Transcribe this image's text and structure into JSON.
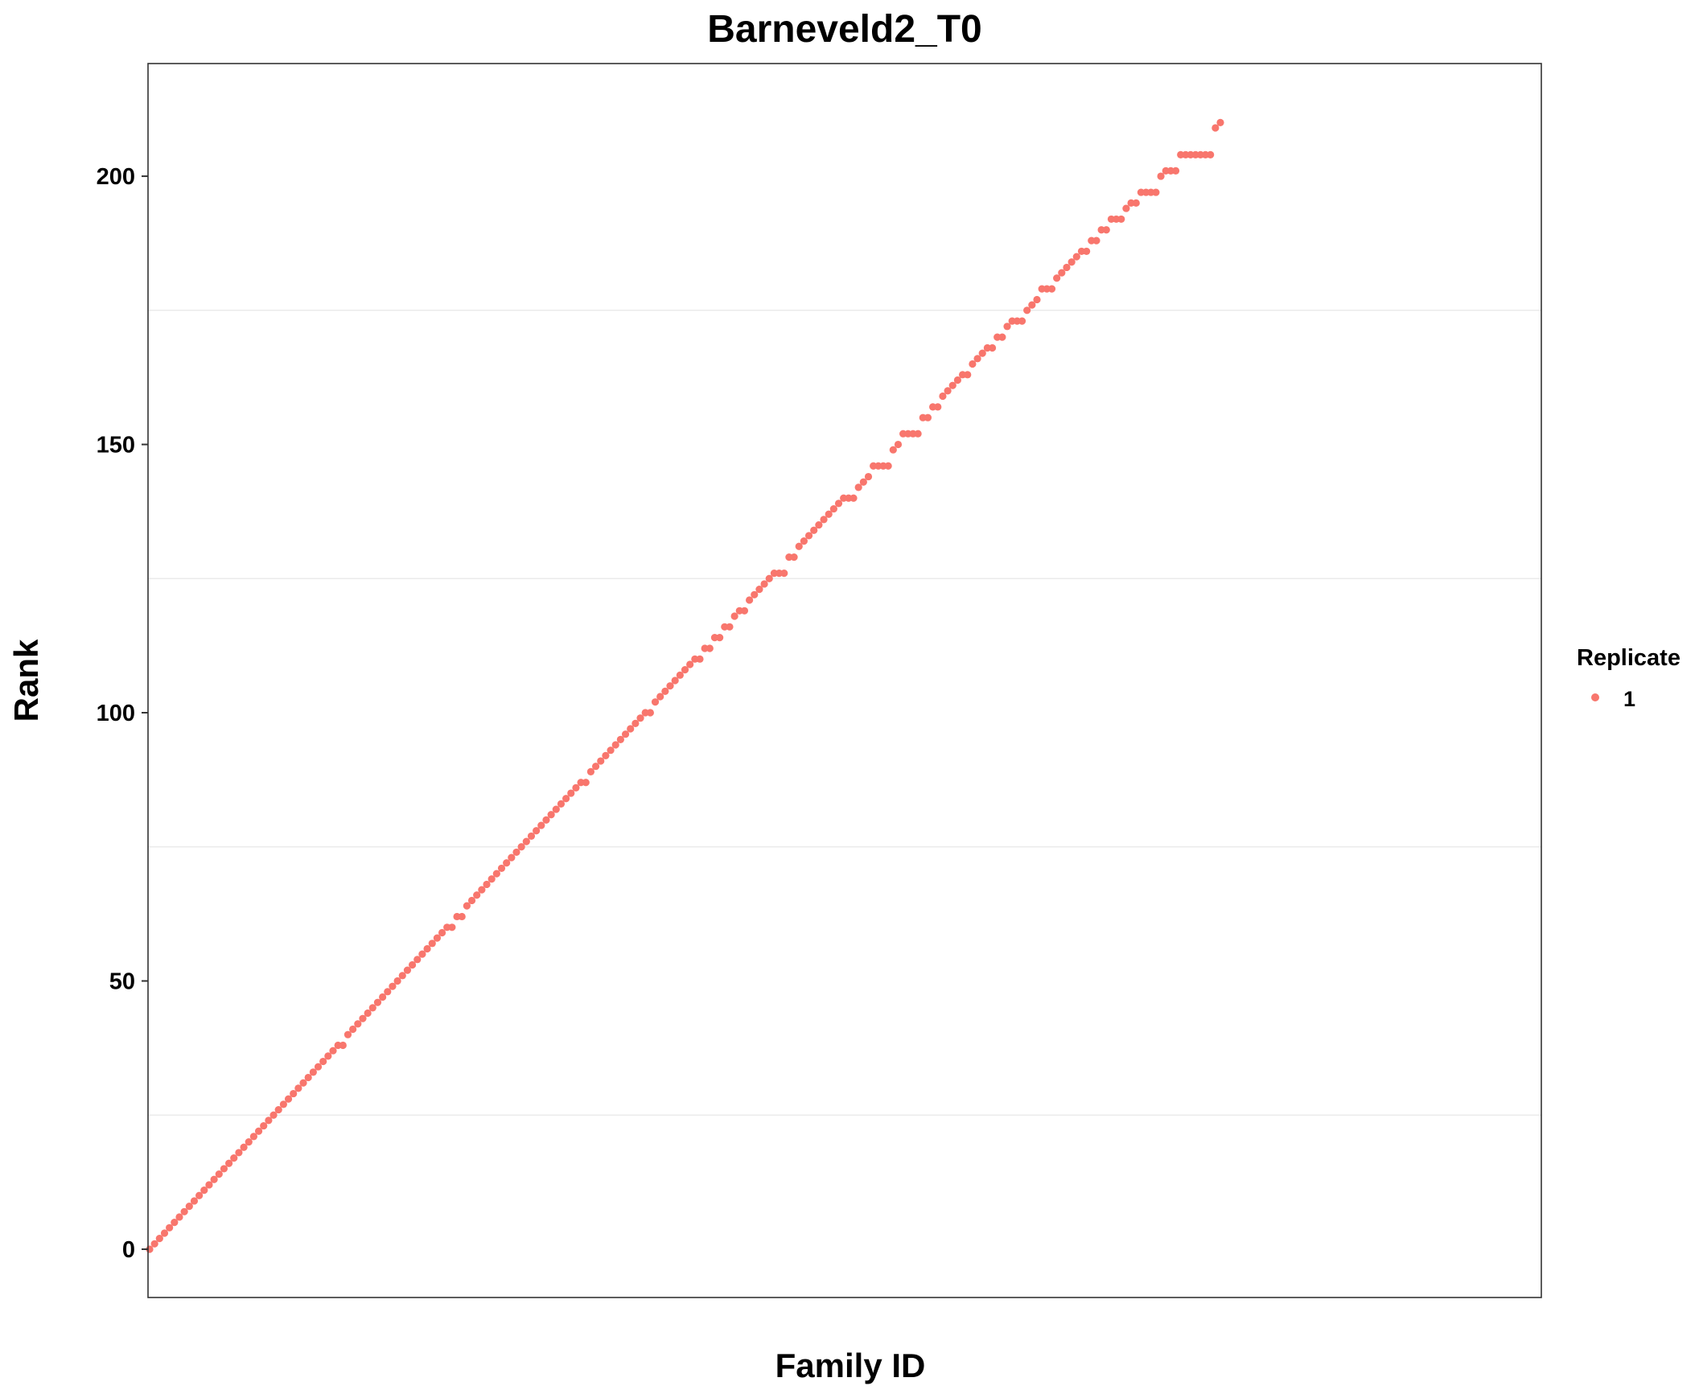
{
  "chart_data": {
    "type": "scatter",
    "title": "Barneveld2_T0",
    "xlabel": "Family ID",
    "ylabel": "Rank",
    "y_ticks": [
      0,
      50,
      100,
      150,
      200
    ],
    "y_tick_labels": [
      "0",
      "50",
      "100",
      "150",
      "200"
    ],
    "ylim": [
      -9,
      221
    ],
    "x_tick_labels": [],
    "grid": "horizontal minor gridlines only",
    "legend": {
      "title": "Replicate",
      "entries": [
        "1"
      ],
      "placement": "right"
    },
    "series": [
      {
        "name": "1",
        "color": "#F8766D",
        "values": [
          0,
          1,
          2,
          3,
          4,
          5,
          6,
          7,
          8,
          9,
          10,
          11,
          12,
          13,
          14,
          15,
          16,
          17,
          18,
          19,
          20,
          21,
          22,
          23,
          24,
          25,
          26,
          27,
          28,
          29,
          30,
          31,
          32,
          33,
          34,
          35,
          36,
          37,
          38,
          38,
          40,
          41,
          42,
          43,
          44,
          45,
          46,
          47,
          48,
          49,
          50,
          51,
          52,
          53,
          54,
          55,
          56,
          57,
          58,
          59,
          60,
          60,
          62,
          62,
          64,
          65,
          66,
          67,
          68,
          69,
          70,
          71,
          72,
          73,
          74,
          75,
          76,
          77,
          78,
          79,
          80,
          81,
          82,
          83,
          84,
          85,
          86,
          87,
          87,
          89,
          90,
          91,
          92,
          93,
          94,
          95,
          96,
          97,
          98,
          99,
          100,
          100,
          102,
          103,
          104,
          105,
          106,
          107,
          108,
          109,
          110,
          110,
          112,
          112,
          114,
          114,
          116,
          116,
          118,
          119,
          119,
          121,
          122,
          123,
          124,
          125,
          126,
          126,
          126,
          129,
          129,
          131,
          132,
          133,
          134,
          135,
          136,
          137,
          138,
          139,
          140,
          140,
          140,
          142,
          143,
          144,
          146,
          146,
          146,
          146,
          149,
          150,
          152,
          152,
          152,
          152,
          155,
          155,
          157,
          157,
          159,
          160,
          161,
          162,
          163,
          163,
          165,
          166,
          167,
          168,
          168,
          170,
          170,
          172,
          173,
          173,
          173,
          175,
          176,
          177,
          179,
          179,
          179,
          181,
          182,
          183,
          184,
          185,
          186,
          186,
          188,
          188,
          190,
          190,
          192,
          192,
          192,
          194,
          195,
          195,
          197,
          197,
          197,
          197,
          200,
          201,
          201,
          201,
          204,
          204,
          204,
          204,
          204,
          204,
          204,
          209,
          210
        ]
      }
    ]
  }
}
